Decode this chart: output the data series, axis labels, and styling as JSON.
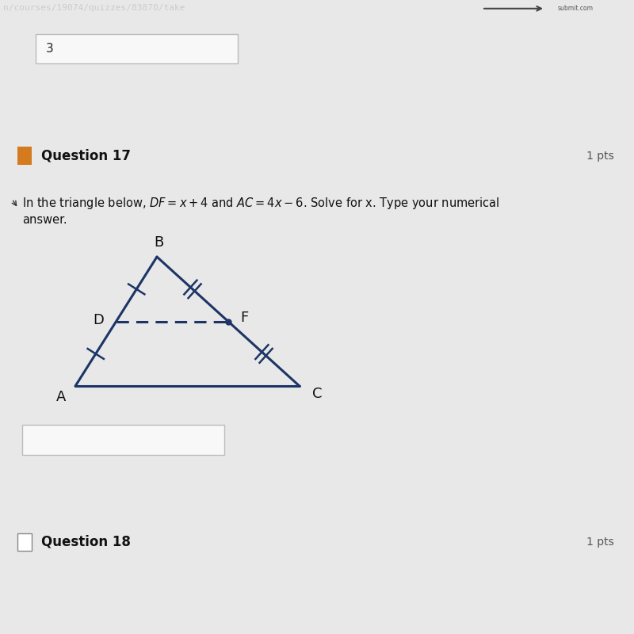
{
  "bg_color": "#ffffff",
  "page_bg": "#e8e8e8",
  "header_bg": "#1a1a2e",
  "header_text": "n/courses/19074/quizzes/83870/take",
  "header_text_color": "#cccccc",
  "prev_answer_box_text": "3",
  "question_number": "Question 17",
  "question_pts": "1 pts",
  "question_text_line1": "In the triangle below, $DF = x + 4$ and $AC = 4x - 6$. Solve for x. Type your numerical",
  "question_text_line2": "answer.",
  "section_divider_color": "#bbbbbb",
  "orange_square_color": "#d47a1f",
  "triangle_color": "#1c3566",
  "answer_box_border": "#cccccc",
  "question18_text": "Question 18",
  "question18_pts": "1 pts",
  "arrow_box_color": "#d8d0b0",
  "arrow_color": "#444444",
  "cursor_color": "#333333"
}
